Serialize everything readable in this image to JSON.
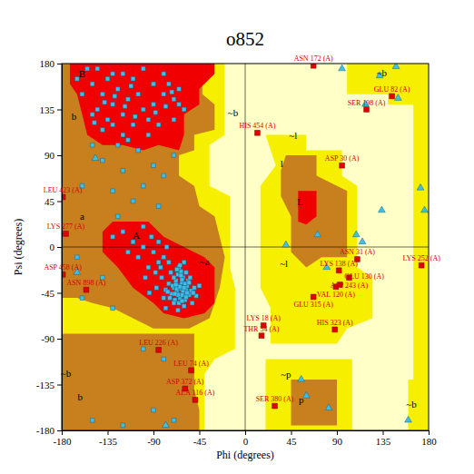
{
  "chart_data": {
    "type": "scatter",
    "title": "o852",
    "x_label": "Phi (degrees)",
    "y_label": "Psi (degrees)",
    "xlim": [
      -180,
      180
    ],
    "ylim": [
      -180,
      180
    ],
    "xticks": [
      -180,
      -135,
      -90,
      -45,
      0,
      45,
      90,
      135,
      180
    ],
    "yticks": [
      -180,
      -135,
      -90,
      -45,
      0,
      45,
      90,
      135,
      180
    ],
    "regions": [
      {
        "color": "#ffffc8",
        "polygons": [
          [
            [
              -180,
              -180
            ],
            [
              180,
              -180
            ],
            [
              180,
              180
            ],
            [
              -180,
              180
            ]
          ]
        ]
      },
      {
        "color": "#f6f000",
        "polygons": [
          [
            [
              -180,
              180
            ],
            [
              -20,
              180
            ],
            [
              -20,
              110
            ],
            [
              -35,
              100
            ],
            [
              -35,
              60
            ],
            [
              -15,
              50
            ],
            [
              -15,
              -20
            ],
            [
              -10,
              -40
            ],
            [
              -10,
              -100
            ],
            [
              -30,
              -110
            ],
            [
              -40,
              -125
            ],
            [
              -40,
              -180
            ],
            [
              -180,
              -180
            ]
          ],
          [
            [
              20,
              110
            ],
            [
              60,
              110
            ],
            [
              60,
              95
            ],
            [
              95,
              95
            ],
            [
              95,
              70
            ],
            [
              110,
              60
            ],
            [
              110,
              -20
            ],
            [
              125,
              -30
            ],
            [
              125,
              -70
            ],
            [
              100,
              -80
            ],
            [
              90,
              -95
            ],
            [
              25,
              -95
            ],
            [
              25,
              -60
            ],
            [
              15,
              -40
            ],
            [
              15,
              60
            ],
            [
              30,
              80
            ]
          ],
          [
            [
              100,
              180
            ],
            [
              180,
              180
            ],
            [
              180,
              -180
            ],
            [
              160,
              -180
            ],
            [
              160,
              -130
            ],
            [
              165,
              -130
            ],
            [
              165,
              140
            ],
            [
              140,
              140
            ],
            [
              140,
              150
            ],
            [
              100,
              150
            ]
          ],
          [
            [
              20,
              -110
            ],
            [
              105,
              -110
            ],
            [
              105,
              -180
            ],
            [
              20,
              -180
            ]
          ]
        ]
      },
      {
        "color": "#c8801e",
        "polygons": [
          [
            [
              -180,
              180
            ],
            [
              -42,
              180
            ],
            [
              -42,
              150
            ],
            [
              -30,
              140
            ],
            [
              -30,
              115
            ],
            [
              -50,
              110
            ],
            [
              -50,
              95
            ],
            [
              -65,
              90
            ],
            [
              -65,
              70
            ],
            [
              -50,
              60
            ],
            [
              -45,
              40
            ],
            [
              -30,
              30
            ],
            [
              -25,
              10
            ],
            [
              -20,
              -10
            ],
            [
              -25,
              -40
            ],
            [
              -35,
              -70
            ],
            [
              -55,
              -80
            ],
            [
              -90,
              -80
            ],
            [
              -110,
              -70
            ],
            [
              -130,
              -60
            ],
            [
              -150,
              -55
            ],
            [
              -165,
              -50
            ],
            [
              -180,
              -50
            ]
          ],
          [
            [
              -180,
              -85
            ],
            [
              -50,
              -85
            ],
            [
              -50,
              -140
            ],
            [
              -45,
              -160
            ],
            [
              -45,
              -180
            ],
            [
              -180,
              -180
            ]
          ],
          [
            [
              40,
              90
            ],
            [
              70,
              90
            ],
            [
              70,
              70
            ],
            [
              100,
              55
            ],
            [
              100,
              -10
            ],
            [
              75,
              -10
            ],
            [
              60,
              -20
            ],
            [
              45,
              -5
            ],
            [
              45,
              30
            ],
            [
              35,
              50
            ],
            [
              35,
              75
            ]
          ],
          [
            [
              45,
              -130
            ],
            [
              90,
              -130
            ],
            [
              90,
              -175
            ],
            [
              45,
              -175
            ]
          ]
        ]
      },
      {
        "color": "#f00000",
        "polygons": [
          [
            [
              -172,
              180
            ],
            [
              -30,
              180
            ],
            [
              -30,
              170
            ],
            [
              -45,
              155
            ],
            [
              -45,
              140
            ],
            [
              -60,
              130
            ],
            [
              -60,
              110
            ],
            [
              -65,
              95
            ],
            [
              -85,
              100
            ],
            [
              -100,
              95
            ],
            [
              -120,
              100
            ],
            [
              -140,
              100
            ],
            [
              -155,
              110
            ],
            [
              -160,
              130
            ],
            [
              -165,
              150
            ],
            [
              -172,
              160
            ]
          ],
          [
            [
              -130,
              25
            ],
            [
              -95,
              25
            ],
            [
              -80,
              10
            ],
            [
              -60,
              0
            ],
            [
              -40,
              -10
            ],
            [
              -30,
              -20
            ],
            [
              -30,
              -55
            ],
            [
              -40,
              -65
            ],
            [
              -60,
              -70
            ],
            [
              -80,
              -65
            ],
            [
              -90,
              -55
            ],
            [
              -110,
              -40
            ],
            [
              -125,
              -20
            ],
            [
              -140,
              -5
            ],
            [
              -140,
              15
            ]
          ],
          [
            [
              52,
              55
            ],
            [
              70,
              55
            ],
            [
              70,
              30
            ],
            [
              60,
              22
            ],
            [
              52,
              25
            ]
          ]
        ]
      }
    ],
    "region_labels": [
      {
        "text": "B",
        "x": -160,
        "y": 170
      },
      {
        "text": "b",
        "x": -168,
        "y": 128
      },
      {
        "text": "A",
        "x": -107,
        "y": 12
      },
      {
        "text": "a",
        "x": -160,
        "y": 30
      },
      {
        "text": "L",
        "x": 54,
        "y": 45
      },
      {
        "text": "l",
        "x": 36,
        "y": 82
      },
      {
        "text": "~b",
        "x": -12,
        "y": 132
      },
      {
        "text": "~l",
        "x": 47,
        "y": 110
      },
      {
        "text": "~a",
        "x": -40,
        "y": -14
      },
      {
        "text": "~l",
        "x": 38,
        "y": -16
      },
      {
        "text": "~p",
        "x": 40,
        "y": -125
      },
      {
        "text": "p",
        "x": 55,
        "y": -150
      },
      {
        "text": "~b",
        "x": 134,
        "y": 171
      },
      {
        "text": "~b",
        "x": -176,
        "y": -124
      },
      {
        "text": "b",
        "x": -162,
        "y": -147
      },
      {
        "text": "~b",
        "x": 163,
        "y": -154
      }
    ],
    "series": [
      {
        "marker": "square",
        "color": "#3ec0e6",
        "x": [
          -63,
          -60,
          -65,
          -58,
          -67,
          -62,
          -70,
          -55,
          -64,
          -61,
          -68,
          -57,
          -72,
          -66,
          -59,
          -75,
          -53,
          -63,
          -69,
          -60,
          -78,
          -50,
          -65,
          -82,
          -56,
          -73,
          -62,
          -67,
          -58,
          -71,
          -85,
          -90,
          -95,
          -100,
          -88,
          -80,
          -105,
          -92,
          -110,
          -98,
          -120,
          -115,
          -75,
          -70,
          -52,
          -48,
          -45,
          -80,
          -87,
          -94,
          -130,
          -125,
          -100,
          -85,
          -78,
          -66,
          -54,
          -77,
          -60,
          -83,
          -120,
          -130,
          -110,
          -140,
          -100,
          -125,
          -115,
          -135,
          -105,
          -95,
          -150,
          -145,
          -90,
          -80,
          -70,
          -65,
          -75,
          -85,
          -120,
          -130,
          -155,
          -160,
          -110,
          -100,
          -140,
          -150,
          -125,
          -115,
          -95,
          -60,
          -65,
          -70,
          -80,
          -90,
          -135,
          -145,
          -165,
          -105,
          -150,
          -120,
          -130,
          -118,
          -108,
          -138,
          -128,
          -88,
          -78,
          -72,
          -112,
          -148,
          -90,
          -120,
          -100,
          -80,
          -140,
          -70,
          -160,
          -110,
          -85,
          -130,
          -100,
          -80,
          -150,
          -120,
          -70,
          -90,
          -130,
          -140,
          -160,
          -165,
          -61,
          -64,
          -59,
          -66,
          -62,
          -57,
          -68,
          -63,
          -60,
          -65,
          -70,
          -55,
          -74,
          -51,
          -62,
          -67,
          -58,
          -76,
          -64,
          -69
        ],
        "values": [
          -41,
          -45,
          -38,
          -42,
          -44,
          -35,
          -40,
          -47,
          -50,
          -30,
          -33,
          -38,
          -46,
          -27,
          -52,
          -36,
          -43,
          -24,
          -52,
          -58,
          -42,
          -40,
          -20,
          -30,
          -33,
          -25,
          -47,
          -41,
          -49,
          -38,
          -15,
          -5,
          -20,
          0,
          -25,
          -10,
          -10,
          10,
          5,
          -30,
          15,
          -5,
          -15,
          -55,
          -55,
          -48,
          -38,
          -50,
          -40,
          -45,
          10,
          30,
          20,
          5,
          -60,
          -62,
          -30,
          0,
          -15,
          -20,
          130,
          140,
          120,
          150,
          135,
          155,
          145,
          125,
          150,
          125,
          160,
          135,
          140,
          150,
          145,
          140,
          160,
          120,
          110,
          170,
          175,
          150,
          165,
          175,
          115,
          130,
          100,
          105,
          110,
          135,
          155,
          125,
          170,
          160,
          165,
          175,
          165,
          95,
          100,
          170,
          120,
          138,
          128,
          142,
          148,
          132,
          138,
          152,
          158,
          122,
          80,
          75,
          60,
          70,
          85,
          90,
          60,
          45,
          40,
          55,
          -100,
          -110,
          -170,
          -175,
          -170,
          -160,
          -60,
          -30,
          -50,
          -10,
          -43,
          -39,
          -36,
          -47,
          -32,
          -45,
          -37,
          -28,
          -40,
          -55,
          -30,
          -35,
          -50,
          -45,
          -53,
          -22,
          -25,
          -44,
          -18,
          -46
        ]
      },
      {
        "marker": "triangle",
        "color": "#3ec0e6",
        "x": [
          148,
          132,
          150,
          118,
          172,
          176,
          134,
          109,
          115,
          60,
          82,
          55,
          40,
          71,
          80,
          -147,
          -78,
          -165,
          95,
          160
        ],
        "values": [
          177,
          168,
          146,
          140,
          58,
          36,
          36,
          12,
          5,
          -146,
          -158,
          -130,
          2,
          12,
          -20,
          87,
          -175,
          -25,
          175,
          -170
        ]
      },
      {
        "marker": "square",
        "color": "#e00000",
        "x": [
          67,
          144,
          119,
          12,
          95,
          -179,
          -176,
          110,
          173,
          92,
          102,
          -179,
          -156,
          89,
          93,
          67,
          18,
          16,
          88,
          -85,
          -53,
          -59,
          -49,
          29
        ],
        "values": [
          178,
          148,
          135,
          112,
          80,
          49,
          13,
          -12,
          -18,
          -23,
          -30,
          -27,
          -42,
          -39,
          -37,
          -49,
          -77,
          -87,
          -81,
          -101,
          -121,
          -139,
          -150,
          -156
        ],
        "labels": [
          "ASN 172 (A)",
          "GLU 82 (A)",
          "SER 198 (A)",
          "HIS 454 (A)",
          "ASP 30 (A)",
          "LEU 423 (A)",
          "LYS 277 (A)",
          "ASN 31 (A)",
          "LYS 252 (A)",
          "LYS 138 (A)",
          "ASP 243 (A)",
          "ASP 458 (A)",
          "ASN 898 (A)",
          "VAL 120 (A)",
          "GLU 130 (A)",
          "GLU 315 (A)",
          "LYS 18 (A)",
          "THR 54 (A)",
          "HIS 323 (A)",
          "LEU 226 (A)",
          "LEU 74 (A)",
          "ASP 372 (A)",
          "ALA 116 (A)",
          "SER 380 (A)"
        ]
      }
    ]
  }
}
